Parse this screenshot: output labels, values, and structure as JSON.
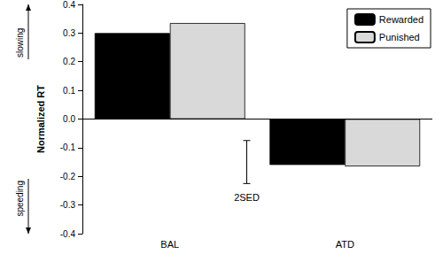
{
  "chart_data": {
    "type": "bar",
    "y_label": "Normalized RT",
    "categories": [
      "BAL",
      "ATD"
    ],
    "series": [
      {
        "name": "Rewarded",
        "color": "#000000",
        "values": [
          0.3,
          -0.16
        ]
      },
      {
        "name": "Punished",
        "color": "#d9d9d9",
        "values": [
          0.335,
          -0.165
        ]
      }
    ],
    "ylim": [
      -0.4,
      0.4
    ],
    "yticks": [
      -0.4,
      -0.3,
      -0.2,
      -0.1,
      {
        "value": 0,
        "label": "0.0"
      },
      0.1,
      0.2,
      0.3,
      0.4
    ],
    "annotations": [
      "slowing",
      "speeding"
    ],
    "scale_bar": {
      "label": "2SED",
      "low": -0.225,
      "high": -0.075
    },
    "legend": "top-right",
    "grid": false
  }
}
